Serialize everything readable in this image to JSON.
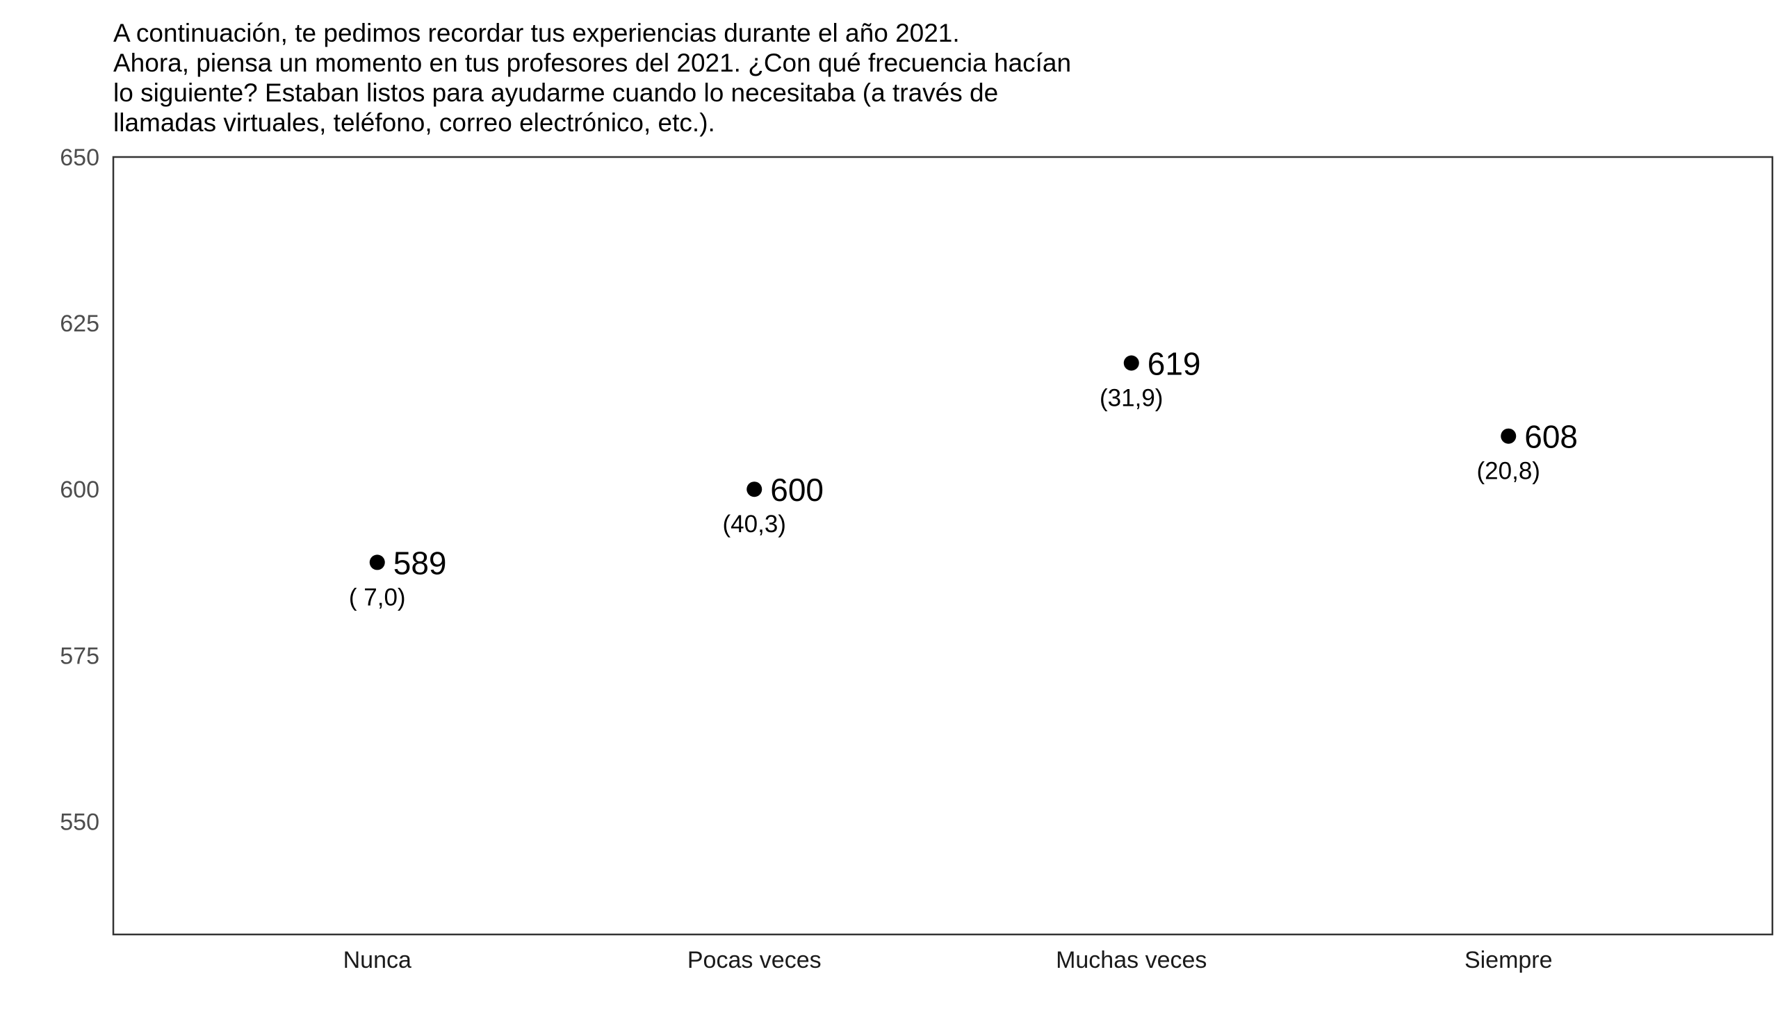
{
  "chart_data": {
    "type": "scatter",
    "title": [
      "A continuación, te pedimos recordar tus experiencias durante el año 2021.",
      "Ahora, piensa un momento en tus profesores del 2021. ¿Con qué frecuencia hacían",
      "lo siguiente? Estaban listos para ayudarme cuando lo necesitaba (a través de",
      "llamadas virtuales, teléfono, correo electrónico, etc.)."
    ],
    "xlabel": "",
    "ylabel": "",
    "categories": [
      "Nunca",
      "Pocas veces",
      "Muchas veces",
      "Siempre"
    ],
    "values": [
      589,
      600,
      619,
      608
    ],
    "value_labels": [
      "589",
      "600",
      "619",
      "608"
    ],
    "se_labels": [
      "( 7,0)",
      "(40,3)",
      "(31,9)",
      "(20,8)"
    ],
    "ylim": [
      533,
      650
    ],
    "yticks": [
      550,
      575,
      600,
      625,
      650
    ],
    "grid": false,
    "legend": "none",
    "colors": {
      "point": "#000000",
      "axis_text": "#4d4d4d",
      "category_text": "#1a1a1a",
      "panel_border": "#333333",
      "background": "#ffffff"
    }
  }
}
